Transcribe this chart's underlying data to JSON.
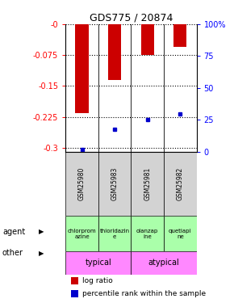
{
  "title": "GDS775 / 20874",
  "samples": [
    "GSM25980",
    "GSM25983",
    "GSM25981",
    "GSM25982"
  ],
  "log_ratios": [
    -0.215,
    -0.135,
    -0.075,
    -0.055
  ],
  "percentile_ranks": [
    2.0,
    18.0,
    25.0,
    30.0
  ],
  "ylim_left": [
    -0.31,
    0.0
  ],
  "ylim_right": [
    0,
    100
  ],
  "yticks_left": [
    -0.3,
    -0.225,
    -0.15,
    -0.075,
    0.0
  ],
  "yticks_right": [
    0,
    25,
    50,
    75,
    100
  ],
  "ytick_labels_left": [
    "-0.3",
    "-0.225",
    "-0.15",
    "-0.075",
    "-0"
  ],
  "ytick_labels_right": [
    "0",
    "25",
    "50",
    "75",
    "100%"
  ],
  "agent_labels": [
    "chlorprom\nazine",
    "thioridazin\ne",
    "olanzap\nine",
    "quetiapi\nne"
  ],
  "agent_color": "#aaffaa",
  "other_color": "#ff88ff",
  "bar_color": "#cc0000",
  "pct_color": "#0000cc",
  "background_color": "#ffffff",
  "sample_bg_color": "#d3d3d3",
  "bar_width": 0.4
}
